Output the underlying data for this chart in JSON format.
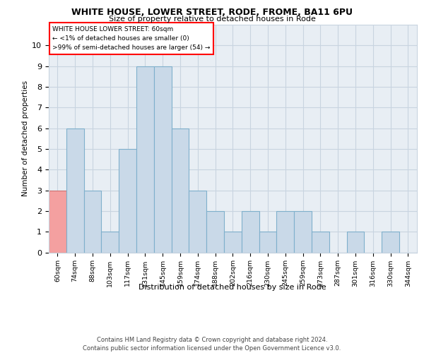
{
  "title1": "WHITE HOUSE, LOWER STREET, RODE, FROME, BA11 6PU",
  "title2": "Size of property relative to detached houses in Rode",
  "xlabel": "Distribution of detached houses by size in Rode",
  "ylabel": "Number of detached properties",
  "categories": [
    "60sqm",
    "74sqm",
    "88sqm",
    "103sqm",
    "117sqm",
    "131sqm",
    "145sqm",
    "159sqm",
    "174sqm",
    "188sqm",
    "202sqm",
    "216sqm",
    "230sqm",
    "245sqm",
    "259sqm",
    "273sqm",
    "287sqm",
    "301sqm",
    "316sqm",
    "330sqm",
    "344sqm"
  ],
  "values": [
    3,
    6,
    3,
    1,
    5,
    9,
    9,
    6,
    3,
    2,
    1,
    2,
    1,
    2,
    2,
    1,
    0,
    1,
    0,
    1,
    0
  ],
  "bar_color": "#c9d9e8",
  "bar_edge_color": "#7fb0cc",
  "highlight_index": 0,
  "highlight_color": "#f4a0a0",
  "highlight_edge_color": "#cc7070",
  "ylim": [
    0,
    11
  ],
  "yticks": [
    0,
    1,
    2,
    3,
    4,
    5,
    6,
    7,
    8,
    9,
    10,
    11
  ],
  "annotation_box_text": [
    "WHITE HOUSE LOWER STREET: 60sqm",
    "← <1% of detached houses are smaller (0)",
    ">99% of semi-detached houses are larger (54) →"
  ],
  "footnote": "Contains HM Land Registry data © Crown copyright and database right 2024.\nContains public sector information licensed under the Open Government Licence v3.0.",
  "grid_color": "#c8d4e0",
  "background_color": "#e8eef4"
}
